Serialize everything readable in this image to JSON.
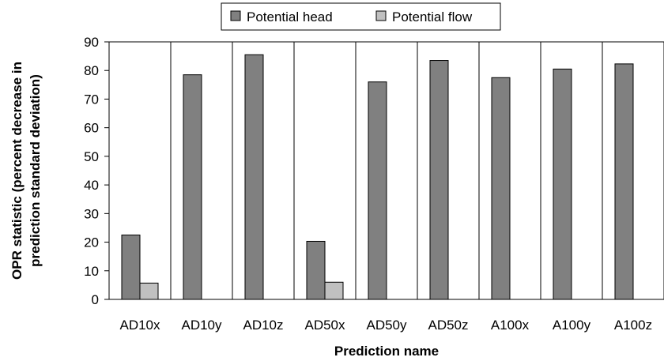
{
  "chart_data": {
    "type": "bar",
    "title": "",
    "xlabel": "Prediction name",
    "ylabel_lines": [
      "OPR statistic (percent decrease in",
      "prediction standard deviation)"
    ],
    "categories": [
      "AD10x",
      "AD10y",
      "AD10z",
      "AD50x",
      "AD50y",
      "AD50z",
      "A100x",
      "A100y",
      "A100z"
    ],
    "series": [
      {
        "name": "Potential head",
        "color": "#808080",
        "values": [
          22.5,
          78.5,
          85.5,
          20.3,
          76.0,
          83.5,
          77.5,
          80.5,
          82.3
        ]
      },
      {
        "name": "Potential flow",
        "color": "#c0c0c0",
        "values": [
          5.7,
          null,
          null,
          6.0,
          null,
          null,
          null,
          null,
          null
        ]
      }
    ],
    "ylim": [
      0,
      90
    ],
    "yticks": [
      0,
      10,
      20,
      30,
      40,
      50,
      60,
      70,
      80,
      90
    ],
    "grid": "vertical-category-dividers",
    "legend_position": "top-center"
  }
}
